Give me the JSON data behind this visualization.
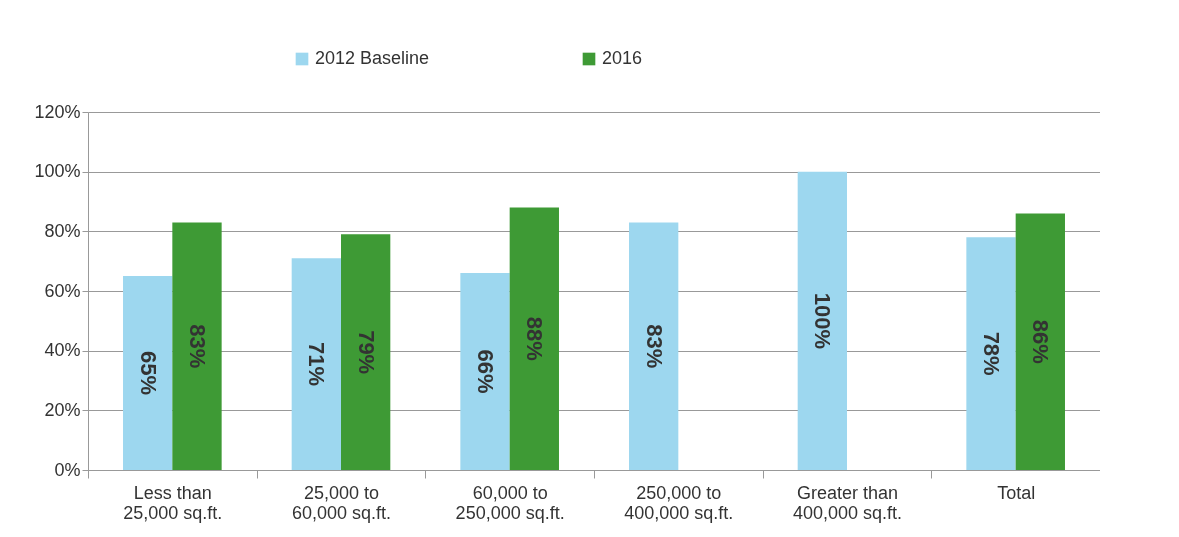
{
  "chart_data": {
    "type": "bar",
    "categories": [
      "Less than\n25,000 sq.ft.",
      "25,000 to\n60,000 sq.ft.",
      "60,000 to\n250,000 sq.ft.",
      "250,000 to\n400,000 sq.ft.",
      "Greater than\n400,000 sq.ft.",
      "Total"
    ],
    "series": [
      {
        "name": "2012 Baseline",
        "color": "#9dd7ef",
        "values": [
          65,
          71,
          66,
          83,
          100,
          78
        ],
        "value_labels": [
          "65%",
          "71%",
          "66%",
          "83%",
          "100%",
          "78%"
        ]
      },
      {
        "name": "2016",
        "color": "#3e9a35",
        "values": [
          83,
          79,
          88,
          null,
          null,
          86
        ],
        "value_labels": [
          "83%",
          "79%",
          "88%",
          null,
          null,
          "86%"
        ]
      }
    ],
    "ylim": [
      0,
      120
    ],
    "yticks": [
      {
        "value": 0,
        "label": "0%"
      },
      {
        "value": 20,
        "label": "20%"
      },
      {
        "value": 40,
        "label": "40%"
      },
      {
        "value": 60,
        "label": "60%"
      },
      {
        "value": 80,
        "label": "80%"
      },
      {
        "value": 100,
        "label": "100%"
      },
      {
        "value": 120,
        "label": "120%"
      }
    ],
    "grid": "y",
    "legend": "top"
  }
}
